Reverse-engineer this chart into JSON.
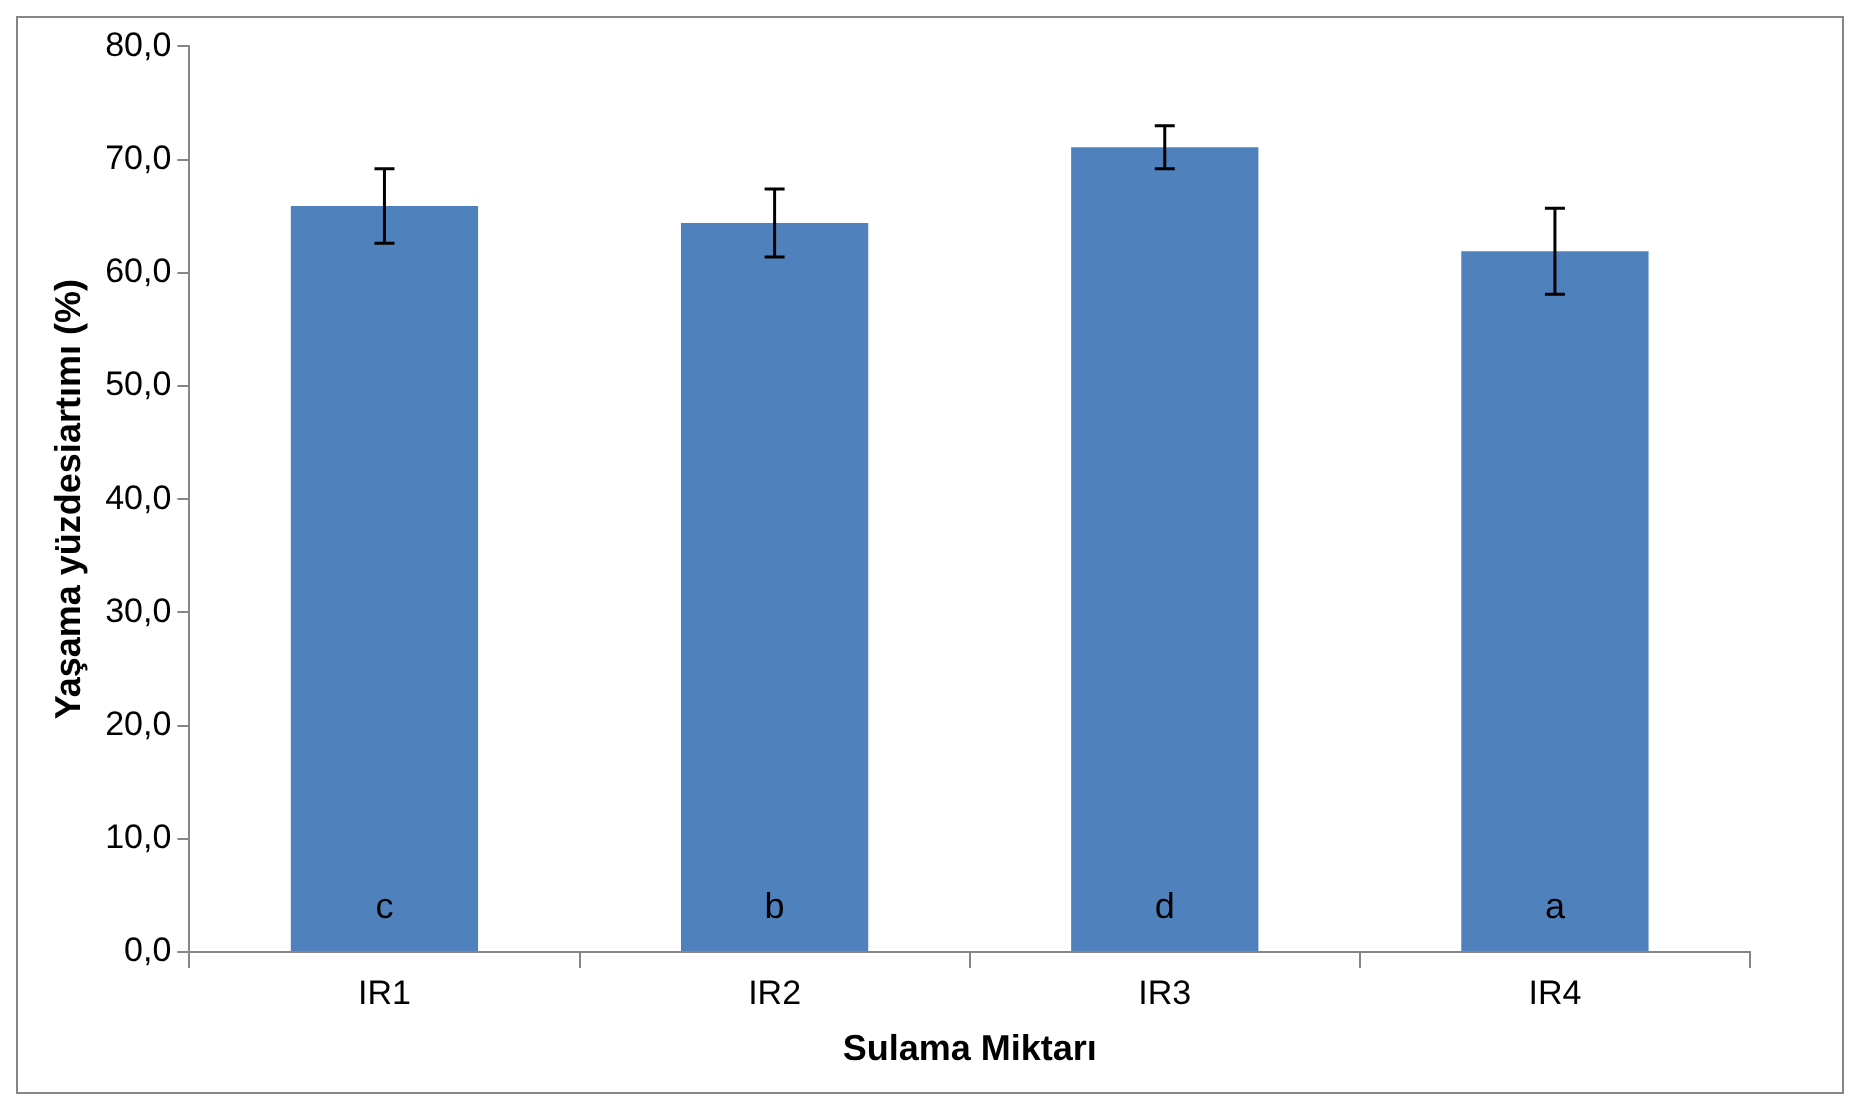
{
  "chart_data": {
    "type": "bar",
    "xlabel": "Sulama Miktarı",
    "ylabel": "Yaşama yüzdesiartımı (%)",
    "categories": [
      "IR1",
      "IR2",
      "IR3",
      "IR4"
    ],
    "values": [
      65.9,
      64.4,
      71.1,
      61.9
    ],
    "color": "#4f81bd",
    "errors": [
      3.3,
      3.0,
      1.9,
      3.8
    ],
    "ylim": [
      0,
      80
    ],
    "yticks": [
      {
        "value": 0,
        "label": "0,0"
      },
      {
        "value": 10,
        "label": "10,0"
      },
      {
        "value": 20,
        "label": "20,0"
      },
      {
        "value": 30,
        "label": "30,0"
      },
      {
        "value": 40,
        "label": "40,0"
      },
      {
        "value": 50,
        "label": "50,0"
      },
      {
        "value": 60,
        "label": "60,0"
      },
      {
        "value": 70,
        "label": "70,0"
      },
      {
        "value": 80,
        "label": "80,0"
      }
    ],
    "annotations": [
      "c",
      "b",
      "d",
      "a"
    ],
    "grid": false,
    "legend": false
  }
}
